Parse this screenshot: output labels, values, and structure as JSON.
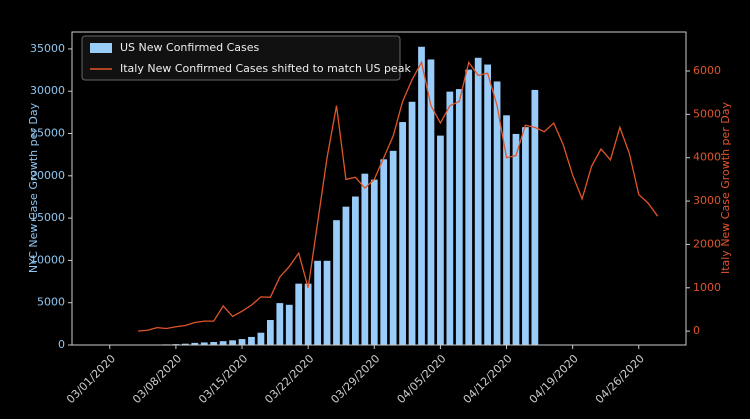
{
  "chart_data": {
    "type": "bar_line",
    "ylabel": "NYC New Case Growth per Day",
    "y2label": "Italy New Case Growth per Day",
    "xlim": [
      "2020-02-26",
      "2020-05-01"
    ],
    "xticks": [
      {
        "value": "2020-03-01",
        "label": "03/01/2020"
      },
      {
        "value": "2020-03-08",
        "label": "03/08/2020"
      },
      {
        "value": "2020-03-15",
        "label": "03/15/2020"
      },
      {
        "value": "2020-03-22",
        "label": "03/22/2020"
      },
      {
        "value": "2020-03-29",
        "label": "03/29/2020"
      },
      {
        "value": "2020-04-05",
        "label": "04/05/2020"
      },
      {
        "value": "2020-04-12",
        "label": "04/12/2020"
      },
      {
        "value": "2020-04-19",
        "label": "04/19/2020"
      },
      {
        "value": "2020-04-26",
        "label": "04/26/2020"
      }
    ],
    "ylim": [
      0,
      37000
    ],
    "yticks": [
      0,
      5000,
      10000,
      15000,
      20000,
      25000,
      30000,
      35000
    ],
    "y2lim": [
      -320,
      6900
    ],
    "y2ticks": [
      0,
      1000,
      2000,
      3000,
      4000,
      5000,
      6000
    ],
    "legend": "upper left",
    "series": [
      {
        "name": "US New Confirmed Cases",
        "kind": "bar",
        "color": "#99ccf8",
        "x": [
          "2020-03-01",
          "2020-03-02",
          "2020-03-03",
          "2020-03-04",
          "2020-03-05",
          "2020-03-06",
          "2020-03-07",
          "2020-03-08",
          "2020-03-09",
          "2020-03-10",
          "2020-03-11",
          "2020-03-12",
          "2020-03-13",
          "2020-03-14",
          "2020-03-15",
          "2020-03-16",
          "2020-03-17",
          "2020-03-18",
          "2020-03-19",
          "2020-03-20",
          "2020-03-21",
          "2020-03-22",
          "2020-03-23",
          "2020-03-24",
          "2020-03-25",
          "2020-03-26",
          "2020-03-27",
          "2020-03-28",
          "2020-03-29",
          "2020-03-30",
          "2020-03-31",
          "2020-04-01",
          "2020-04-02",
          "2020-04-03",
          "2020-04-04",
          "2020-04-05",
          "2020-04-06",
          "2020-04-07",
          "2020-04-08",
          "2020-04-09",
          "2020-04-10",
          "2020-04-11",
          "2020-04-12",
          "2020-04-13",
          "2020-04-14",
          "2020-04-15"
        ],
        "values": [
          10,
          20,
          30,
          50,
          70,
          100,
          120,
          150,
          200,
          300,
          350,
          400,
          500,
          600,
          750,
          1000,
          1500,
          3000,
          5000,
          4800,
          7300,
          7300,
          10000,
          10000,
          14800,
          16400,
          17600,
          20300,
          19600,
          22000,
          23000,
          26400,
          28800,
          35300,
          33800,
          24800,
          30000,
          30300,
          32600,
          34000,
          33200,
          31200,
          27200,
          25000,
          25800,
          30200
        ]
      },
      {
        "name": "Italy New Confirmed Cases shifted to match US peak",
        "kind": "line",
        "axis": "y2",
        "color": "#e0552a",
        "x": [
          "2020-03-04",
          "2020-03-05",
          "2020-03-06",
          "2020-03-07",
          "2020-03-08",
          "2020-03-09",
          "2020-03-10",
          "2020-03-11",
          "2020-03-12",
          "2020-03-13",
          "2020-03-14",
          "2020-03-15",
          "2020-03-16",
          "2020-03-17",
          "2020-03-18",
          "2020-03-19",
          "2020-03-20",
          "2020-03-21",
          "2020-03-22",
          "2020-03-23",
          "2020-03-24",
          "2020-03-25",
          "2020-03-26",
          "2020-03-27",
          "2020-03-28",
          "2020-03-29",
          "2020-03-30",
          "2020-03-31",
          "2020-04-01",
          "2020-04-02",
          "2020-04-03",
          "2020-04-04",
          "2020-04-05",
          "2020-04-06",
          "2020-04-07",
          "2020-04-08",
          "2020-04-09",
          "2020-04-10",
          "2020-04-11",
          "2020-04-12",
          "2020-04-13",
          "2020-04-14",
          "2020-04-15",
          "2020-04-16",
          "2020-04-17",
          "2020-04-18",
          "2020-04-19",
          "2020-04-20",
          "2020-04-21",
          "2020-04-22",
          "2020-04-23",
          "2020-04-24",
          "2020-04-25",
          "2020-04-26",
          "2020-04-27",
          "2020-04-28"
        ],
        "values": [
          0,
          20,
          80,
          60,
          100,
          130,
          200,
          230,
          230,
          580,
          340,
          460,
          600,
          790,
          780,
          1250,
          1490,
          1800,
          1000,
          2500,
          4000,
          5200,
          3500,
          3550,
          3300,
          3500,
          4000,
          4500,
          5300,
          5800,
          6200,
          5200,
          4800,
          5200,
          5300,
          6200,
          5900,
          5950,
          5200,
          4000,
          4050,
          4750,
          4700,
          4600,
          4800,
          4300,
          3600,
          3050,
          3800,
          4200,
          3950,
          4700,
          4100,
          3150,
          2950,
          2650
        ]
      }
    ]
  }
}
